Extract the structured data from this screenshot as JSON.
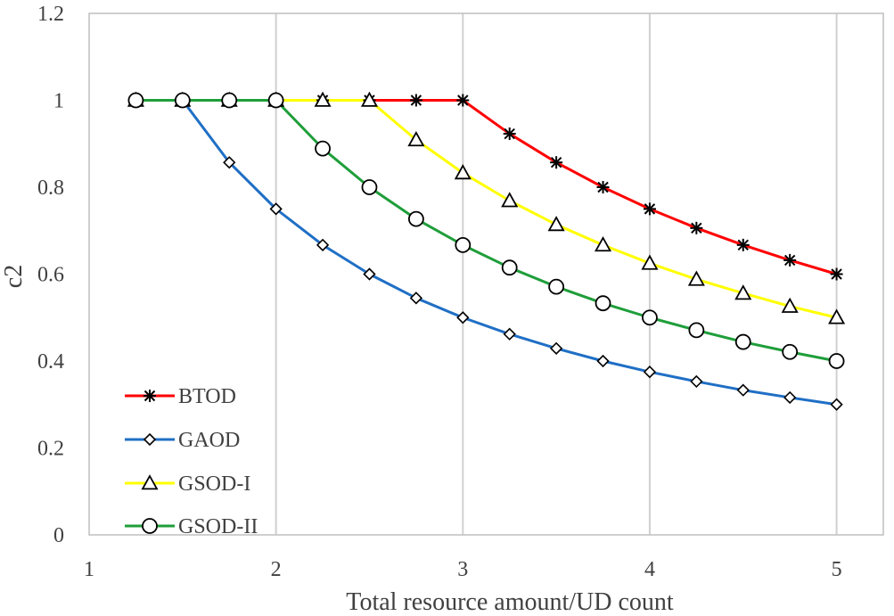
{
  "chart_data": {
    "type": "line",
    "title": "",
    "xlabel": "Total resource amount/UD count",
    "ylabel": "c2",
    "xlim": [
      1,
      5.25
    ],
    "ylim": [
      0,
      1.2
    ],
    "x_ticks": [
      1,
      2,
      3,
      4,
      5
    ],
    "x_tick_labels": [
      "1",
      "2",
      "3",
      "4",
      "5"
    ],
    "y_ticks": [
      0,
      0.2,
      0.4,
      0.6,
      0.8,
      1,
      1.2
    ],
    "y_tick_labels": [
      "0",
      "0.2",
      "0.4",
      "0.6",
      "0.8",
      "1",
      "1.2"
    ],
    "grid": "vertical",
    "legend_position": "bottom-left",
    "x": [
      1.25,
      1.5,
      1.75,
      2,
      2.25,
      2.5,
      2.75,
      3,
      3.25,
      3.5,
      3.75,
      4,
      4.25,
      4.5,
      4.75,
      5
    ],
    "series": [
      {
        "name": "BTOD",
        "color": "#ff0000",
        "marker": "asterisk",
        "values": [
          1,
          1,
          1,
          1,
          1,
          1,
          1,
          1,
          0.923,
          0.857,
          0.8,
          0.75,
          0.706,
          0.667,
          0.632,
          0.6
        ]
      },
      {
        "name": "GAOD",
        "color": "#1f6fc5",
        "marker": "diamond",
        "values": [
          1,
          1,
          0.857,
          0.75,
          0.667,
          0.6,
          0.545,
          0.5,
          0.462,
          0.429,
          0.4,
          0.375,
          0.353,
          0.333,
          0.316,
          0.3
        ]
      },
      {
        "name": "GSOD-I",
        "color": "#ffff00",
        "marker": "triangle",
        "values": [
          1,
          1,
          1,
          1,
          1,
          1,
          0.909,
          0.833,
          0.769,
          0.714,
          0.667,
          0.625,
          0.588,
          0.556,
          0.526,
          0.5
        ]
      },
      {
        "name": "GSOD-II",
        "color": "#1f9e3a",
        "marker": "circle",
        "values": [
          1,
          1,
          1,
          1,
          0.889,
          0.8,
          0.727,
          0.667,
          0.615,
          0.571,
          0.533,
          0.5,
          0.471,
          0.444,
          0.421,
          0.4
        ]
      }
    ]
  }
}
